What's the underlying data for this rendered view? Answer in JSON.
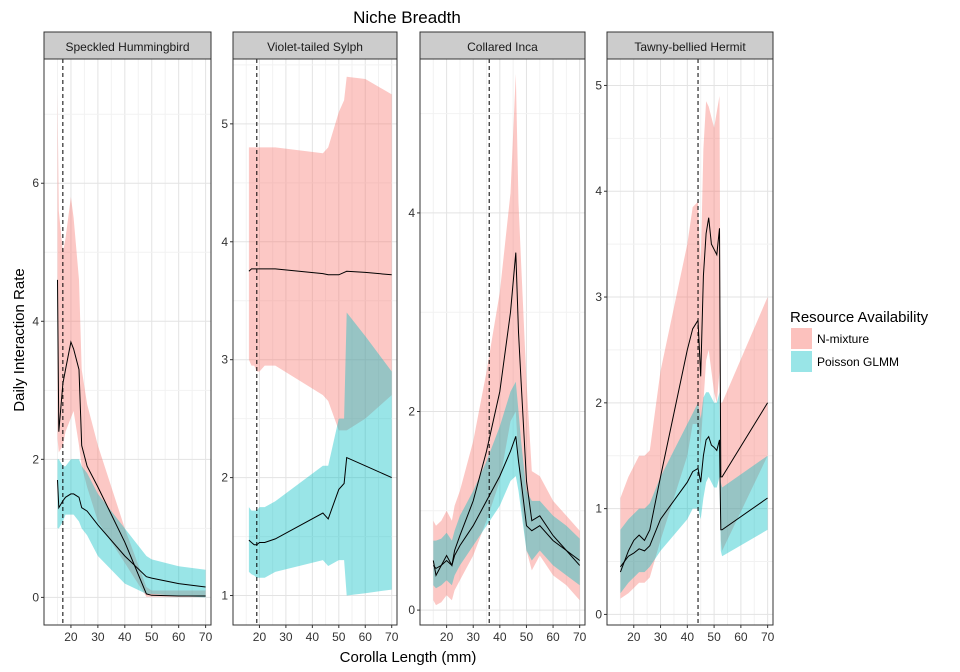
{
  "chart_data": {
    "type": "area",
    "title": "Niche Breadth",
    "xlabel": "Corolla Length (mm)",
    "ylabel": "Daily Interaction Rate",
    "xlim": [
      10,
      72
    ],
    "x_ticks": [
      20,
      30,
      40,
      50,
      60,
      70
    ],
    "grid": true,
    "legend": {
      "title": "Resource Availability",
      "position": "right",
      "entries": [
        {
          "name": "N-mixture",
          "color": "#F8766D"
        },
        {
          "name": "Poisson GLMM",
          "color": "#00BFC4"
        }
      ]
    },
    "panels": [
      {
        "strip": "Speckled Hummingbird",
        "ylim": [
          -0.4,
          7.8
        ],
        "y_ticks": [
          0,
          2,
          4,
          6
        ],
        "vline": 17,
        "series": [
          {
            "name": "N-mixture",
            "x": [
              15,
              15.5,
              17,
              18,
              20,
              21,
              23,
              24,
              26,
              30,
              40,
              48,
              50,
              60,
              70
            ],
            "lower": [
              2.3,
              2.1,
              2.2,
              2.4,
              2.6,
              2.7,
              2.2,
              1.9,
              1.6,
              1.1,
              0.5,
              0.01,
              0.01,
              0.01,
              0.01
            ],
            "upper": [
              7.3,
              5.6,
              5.0,
              5.2,
              5.8,
              5.5,
              4.6,
              3.3,
              2.8,
              2.2,
              1.0,
              0.15,
              0.1,
              0.1,
              0.1
            ],
            "mean": [
              4.6,
              2.4,
              3.1,
              3.3,
              3.7,
              3.6,
              3.3,
              2.2,
              1.9,
              1.6,
              0.8,
              0.05,
              0.03,
              0.02,
              0.02
            ]
          },
          {
            "name": "Poisson GLMM",
            "x": [
              15,
              15.5,
              17,
              18,
              20,
              21,
              23,
              24,
              26,
              30,
              40,
              48,
              50,
              60,
              70
            ],
            "lower": [
              1.0,
              1.0,
              1.1,
              1.2,
              1.2,
              1.2,
              1.1,
              1.0,
              0.9,
              0.6,
              0.2,
              0.05,
              0.05,
              0.02,
              0.0
            ],
            "upper": [
              2.0,
              2.0,
              1.9,
              1.9,
              2.0,
              2.0,
              2.0,
              1.9,
              1.8,
              1.5,
              1.0,
              0.6,
              0.55,
              0.45,
              0.4
            ],
            "mean": [
              1.7,
              1.3,
              1.4,
              1.45,
              1.5,
              1.5,
              1.45,
              1.3,
              1.25,
              1.05,
              0.6,
              0.3,
              0.28,
              0.2,
              0.15
            ]
          }
        ]
      },
      {
        "strip": "Violet-tailed Sylph",
        "ylim": [
          0.75,
          5.55
        ],
        "y_ticks": [
          1,
          2,
          3,
          4,
          5
        ],
        "vline": 19,
        "series": [
          {
            "name": "N-mixture",
            "x": [
              16,
              17,
              18,
              19,
              20,
              22,
              26,
              44,
              46,
              50,
              52,
              53,
              60,
              70
            ],
            "lower": [
              3.0,
              2.95,
              2.95,
              2.9,
              2.9,
              2.95,
              2.95,
              2.7,
              2.65,
              2.4,
              2.4,
              2.4,
              2.5,
              2.7
            ],
            "upper": [
              4.8,
              4.8,
              4.8,
              4.8,
              4.8,
              4.8,
              4.8,
              4.75,
              4.8,
              5.1,
              5.2,
              5.4,
              5.38,
              5.25
            ],
            "mean": [
              3.75,
              3.77,
              3.77,
              3.77,
              3.77,
              3.77,
              3.77,
              3.73,
              3.72,
              3.72,
              3.74,
              3.75,
              3.74,
              3.72
            ]
          },
          {
            "name": "Poisson GLMM",
            "x": [
              16,
              17,
              18,
              19,
              20,
              22,
              26,
              44,
              46,
              50,
              52,
              53,
              60,
              70
            ],
            "lower": [
              1.2,
              1.18,
              1.17,
              1.15,
              1.15,
              1.15,
              1.2,
              1.3,
              1.25,
              1.3,
              1.3,
              1.0,
              1.02,
              1.05
            ],
            "upper": [
              1.75,
              1.72,
              1.72,
              1.72,
              1.75,
              1.75,
              1.8,
              2.1,
              2.1,
              2.5,
              2.5,
              3.4,
              3.2,
              2.9
            ],
            "mean": [
              1.47,
              1.45,
              1.43,
              1.43,
              1.45,
              1.45,
              1.48,
              1.7,
              1.65,
              1.9,
              1.95,
              2.17,
              2.1,
              2.0
            ]
          }
        ]
      },
      {
        "strip": "Collared Inca",
        "ylim": [
          -0.15,
          5.55
        ],
        "y_ticks": [
          0,
          2,
          4
        ],
        "vline": 36,
        "series": [
          {
            "name": "N-mixture",
            "x": [
              15,
              16,
              18,
              20,
              22,
              23,
              25,
              30,
              35,
              40,
              44,
              46,
              47,
              48,
              50,
              52,
              55,
              60,
              65,
              70
            ],
            "lower": [
              0.1,
              0.05,
              0.08,
              0.15,
              0.1,
              0.2,
              0.3,
              0.55,
              0.9,
              1.3,
              1.9,
              2.0,
              1.5,
              1.1,
              0.6,
              0.4,
              0.55,
              0.35,
              0.25,
              0.1
            ],
            "upper": [
              0.9,
              0.85,
              0.9,
              1.0,
              0.9,
              1.05,
              1.2,
              1.7,
              2.4,
              3.2,
              4.2,
              5.4,
              4.1,
              3.5,
              2.3,
              1.4,
              1.35,
              1.1,
              0.95,
              0.8
            ],
            "mean": [
              0.5,
              0.35,
              0.45,
              0.55,
              0.45,
              0.6,
              0.75,
              1.1,
              1.6,
              2.2,
              3.0,
              3.6,
              2.8,
              2.3,
              1.3,
              0.9,
              0.95,
              0.75,
              0.6,
              0.45
            ]
          },
          {
            "name": "Poisson GLMM",
            "x": [
              15,
              16,
              18,
              20,
              22,
              23,
              25,
              30,
              35,
              40,
              44,
              46,
              47,
              48,
              50,
              52,
              55,
              60,
              65,
              70
            ],
            "lower": [
              0.25,
              0.22,
              0.25,
              0.3,
              0.25,
              0.35,
              0.45,
              0.65,
              0.85,
              1.05,
              1.3,
              1.35,
              1.2,
              1.0,
              0.6,
              0.5,
              0.6,
              0.45,
              0.35,
              0.25
            ],
            "upper": [
              0.7,
              0.7,
              0.72,
              0.78,
              0.7,
              0.8,
              0.95,
              1.2,
              1.5,
              1.85,
              2.2,
              2.3,
              2.0,
              1.7,
              1.2,
              1.1,
              1.1,
              0.95,
              0.85,
              0.72
            ],
            "mean": [
              0.45,
              0.42,
              0.45,
              0.5,
              0.45,
              0.55,
              0.65,
              0.85,
              1.1,
              1.35,
              1.6,
              1.75,
              1.5,
              1.3,
              0.85,
              0.8,
              0.85,
              0.7,
              0.6,
              0.5
            ]
          }
        ]
      },
      {
        "strip": "Tawny-bellied Hermit",
        "ylim": [
          -0.1,
          5.25
        ],
        "y_ticks": [
          0,
          1,
          2,
          3,
          4,
          5
        ],
        "vline": 44,
        "series": [
          {
            "name": "N-mixture",
            "x": [
              15,
              18,
              20,
              22,
              24,
              26,
              30,
              40,
              42,
              44,
              45,
              46,
              47,
              48,
              49,
              50,
              51,
              52,
              52.5,
              53,
              70
            ],
            "lower": [
              0.15,
              0.2,
              0.25,
              0.3,
              0.3,
              0.35,
              0.7,
              1.5,
              1.8,
              1.8,
              1.6,
              2.0,
              2.4,
              2.5,
              2.3,
              2.1,
              2.0,
              2.3,
              0.7,
              0.6,
              1.5
            ],
            "upper": [
              1.1,
              1.3,
              1.4,
              1.5,
              1.5,
              1.55,
              2.3,
              3.5,
              3.85,
              3.9,
              3.3,
              4.4,
              4.85,
              4.8,
              4.7,
              4.6,
              4.75,
              4.9,
              2.0,
              2.0,
              3.0
            ],
            "mean": [
              0.4,
              0.6,
              0.7,
              0.75,
              0.7,
              0.8,
              1.3,
              2.5,
              2.7,
              2.78,
              2.25,
              3.2,
              3.6,
              3.75,
              3.5,
              3.45,
              3.4,
              3.65,
              1.3,
              1.3,
              2.0
            ]
          },
          {
            "name": "Poisson GLMM",
            "x": [
              15,
              18,
              20,
              22,
              24,
              26,
              30,
              40,
              42,
              44,
              45,
              46,
              47,
              48,
              49,
              50,
              51,
              52,
              52.5,
              53,
              70
            ],
            "lower": [
              0.2,
              0.3,
              0.35,
              0.4,
              0.4,
              0.45,
              0.6,
              0.9,
              1.0,
              1.0,
              0.9,
              1.1,
              1.25,
              1.3,
              1.25,
              1.2,
              1.2,
              1.3,
              0.6,
              0.55,
              0.8
            ],
            "upper": [
              0.8,
              0.9,
              0.95,
              1.0,
              1.0,
              1.05,
              1.3,
              1.8,
              1.9,
              2.0,
              1.85,
              2.05,
              2.1,
              2.1,
              2.05,
              2.0,
              2.0,
              2.1,
              1.25,
              1.2,
              1.5
            ],
            "mean": [
              0.45,
              0.55,
              0.58,
              0.62,
              0.6,
              0.65,
              0.9,
              1.25,
              1.35,
              1.38,
              1.25,
              1.5,
              1.65,
              1.68,
              1.6,
              1.58,
              1.55,
              1.65,
              0.8,
              0.8,
              1.1
            ]
          }
        ]
      }
    ]
  }
}
